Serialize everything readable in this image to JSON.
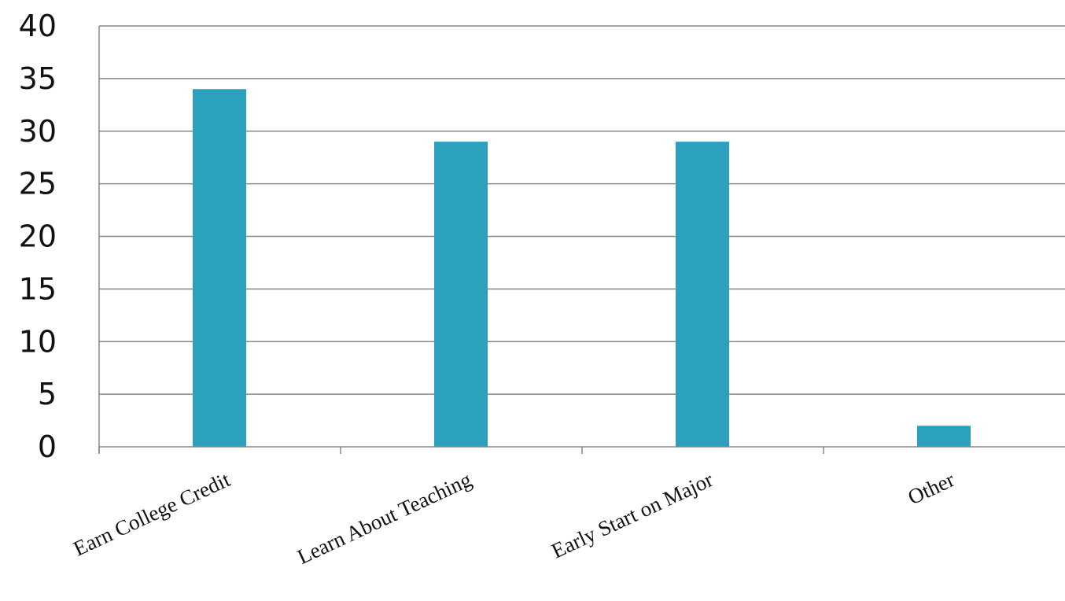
{
  "chart_data": {
    "type": "bar",
    "title": "",
    "xlabel": "",
    "ylabel": "",
    "categories": [
      "Earn College Credit",
      "Learn About Teaching",
      "Early Start on Major",
      "Other"
    ],
    "values": [
      34,
      29,
      29,
      2
    ],
    "ylim": [
      0,
      40
    ],
    "yticks": [
      0,
      5,
      10,
      15,
      20,
      25,
      30,
      35,
      40
    ],
    "grid": true,
    "legend": "none",
    "colors": {
      "bar": "#2CA1BE",
      "grid": "#888888",
      "axis": "#888888",
      "text": "#111111"
    }
  }
}
